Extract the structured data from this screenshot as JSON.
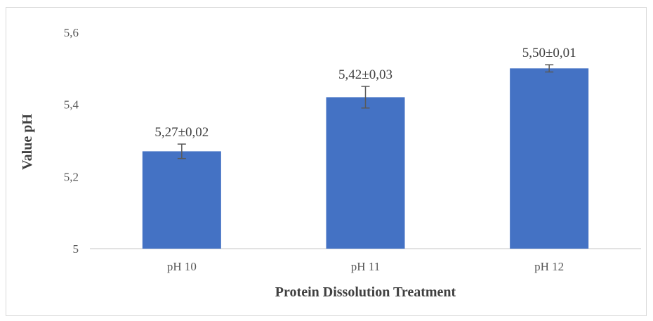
{
  "chart_data": {
    "type": "bar",
    "categories": [
      "pH 10",
      "pH 11",
      "pH 12"
    ],
    "values": [
      5.27,
      5.42,
      5.5
    ],
    "errors": [
      0.02,
      0.03,
      0.01
    ],
    "data_labels": [
      "5,27±0,02",
      "5,42±0,03",
      "5,50±0,01"
    ],
    "xlabel": "Protein Dissolution Treatment",
    "ylabel": "Value pH",
    "ylim": [
      5,
      5.6
    ],
    "yticks": [
      5,
      5.2,
      5.4,
      5.6
    ],
    "ytick_labels": [
      "5",
      "5,2",
      "5,4",
      "5,6"
    ],
    "grid": false,
    "bar_color": "#4472c4",
    "error_bar_color": "#595959",
    "axis_color": "#d9d9d9"
  }
}
